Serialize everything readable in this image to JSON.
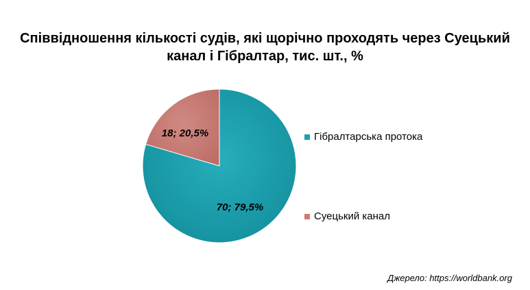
{
  "chart_data": {
    "type": "pie",
    "title_lines": [
      "Співвідношення кількості судів, які щорічно проходять через Суецький",
      "канал і Гібралтар, тис. шт., %"
    ],
    "slices": [
      {
        "name": "Гібралтарська протока",
        "value": 70,
        "percent": 79.5,
        "label": "70; 79,5%",
        "color": "#1fa0ae"
      },
      {
        "name": "Суецький канал",
        "value": 18,
        "percent": 20.5,
        "label": "18; 20,5%",
        "color": "#c97b74"
      }
    ],
    "legend_position": "right"
  },
  "source": "Джерело: https://worldbank.org"
}
